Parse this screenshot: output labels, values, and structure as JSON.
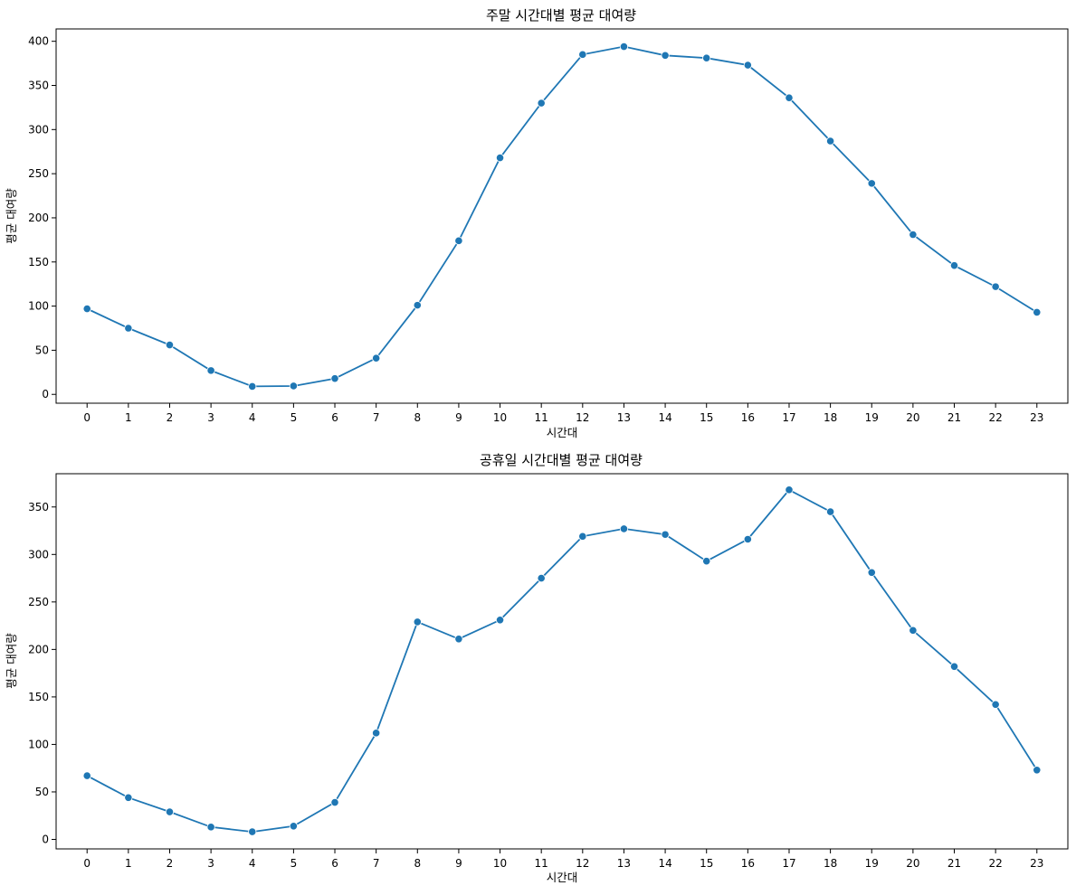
{
  "chart_data": [
    {
      "type": "line",
      "title": "주말 시간대별 평균 대여량",
      "xlabel": "시간대",
      "ylabel": "평균 대여량",
      "categories": [
        "0",
        "1",
        "2",
        "3",
        "4",
        "5",
        "6",
        "7",
        "8",
        "9",
        "10",
        "11",
        "12",
        "13",
        "14",
        "15",
        "16",
        "17",
        "18",
        "19",
        "20",
        "21",
        "22",
        "23"
      ],
      "yticks": [
        0,
        50,
        100,
        150,
        200,
        250,
        300,
        350,
        400
      ],
      "ylim": [
        -10,
        414
      ],
      "xlim": [
        -0.75,
        23.75
      ],
      "grid": false,
      "series": [
        {
          "values": [
            97,
            75,
            56,
            27,
            9,
            9.5,
            18,
            41,
            101,
            174,
            268,
            330,
            385,
            394,
            384,
            381,
            373,
            336,
            287,
            239,
            181,
            146,
            122,
            93
          ]
        }
      ],
      "colors": {
        "line": "#1f77b4",
        "marker": "#1f77b4",
        "marker_edge": "#ffffff"
      }
    },
    {
      "type": "line",
      "title": "공휴일 시간대별 평균 대여량",
      "xlabel": "시간대",
      "ylabel": "평균 대여량",
      "categories": [
        "0",
        "1",
        "2",
        "3",
        "4",
        "5",
        "6",
        "7",
        "8",
        "9",
        "10",
        "11",
        "12",
        "13",
        "14",
        "15",
        "16",
        "17",
        "18",
        "19",
        "20",
        "21",
        "22",
        "23"
      ],
      "yticks": [
        0,
        50,
        100,
        150,
        200,
        250,
        300,
        350
      ],
      "ylim": [
        -10,
        385
      ],
      "xlim": [
        -0.75,
        23.75
      ],
      "grid": false,
      "series": [
        {
          "values": [
            67,
            44,
            29,
            13,
            8,
            14,
            39,
            112,
            229,
            211,
            231,
            275,
            319,
            327,
            321,
            293,
            316,
            368,
            345,
            281,
            220,
            182,
            142,
            73
          ]
        }
      ],
      "colors": {
        "line": "#1f77b4",
        "marker": "#1f77b4",
        "marker_edge": "#ffffff"
      }
    }
  ]
}
